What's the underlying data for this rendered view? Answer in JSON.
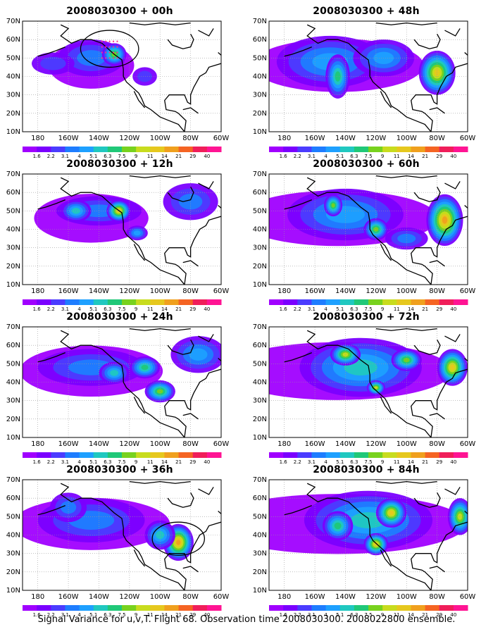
{
  "colors": {
    "background": "#ffffff",
    "coast": "#000000",
    "grid": "#9a9a9a",
    "highlight_circle": "#000000",
    "dots": "#ff2d8a"
  },
  "colorbar": {
    "labels": [
      "1.6",
      "2.2",
      "3.1",
      "4",
      "5.1",
      "6.3",
      "7.5",
      "9",
      "11",
      "14",
      "21",
      "29",
      "40"
    ],
    "colors": [
      "#a000ff",
      "#7a00ff",
      "#4b3cff",
      "#1e7dff",
      "#1ea0ff",
      "#20c8c0",
      "#20c878",
      "#78d21e",
      "#c8dc1e",
      "#e6c81e",
      "#f0a01e",
      "#f56423",
      "#f01e5a",
      "#ff1493"
    ]
  },
  "axes": {
    "lon_ticks": [
      "180",
      "160W",
      "140W",
      "120W",
      "100W",
      "80W",
      "60W"
    ],
    "lat_ticks": [
      "10N",
      "20N",
      "30N",
      "40N",
      "50N",
      "60N",
      "70N"
    ],
    "lon_range": [
      -190,
      -60
    ],
    "lat_range": [
      10,
      70
    ]
  },
  "panels": [
    {
      "id": "p00",
      "title": "2008030300 + 00h",
      "level": 0.6,
      "circle": {
        "lon": -133,
        "lat": 55,
        "r": 10
      },
      "dots": true,
      "blobs": [
        {
          "lon": -145,
          "lat": 50,
          "sx": 22,
          "sy": 10,
          "lv": 3
        },
        {
          "lon": -130,
          "lat": 52,
          "sx": 8,
          "sy": 6,
          "lv": 7
        },
        {
          "lon": -170,
          "lat": 47,
          "sx": 14,
          "sy": 6,
          "lv": 2
        },
        {
          "lon": -110,
          "lat": 40,
          "sx": 8,
          "sy": 5,
          "lv": 2
        }
      ]
    },
    {
      "id": "p48",
      "title": "2008030300 + 48h",
      "level": 1.2,
      "blobs": [
        {
          "lon": -150,
          "lat": 48,
          "sx": 35,
          "sy": 14,
          "lv": 4
        },
        {
          "lon": -80,
          "lat": 42,
          "sx": 12,
          "sy": 12,
          "lv": 9
        },
        {
          "lon": -145,
          "lat": 40,
          "sx": 8,
          "sy": 12,
          "lv": 6
        },
        {
          "lon": -115,
          "lat": 50,
          "sx": 20,
          "sy": 10,
          "lv": 4
        }
      ]
    },
    {
      "id": "p12",
      "title": "2008030300 + 12h",
      "level": 0.8,
      "blobs": [
        {
          "lon": -140,
          "lat": 50,
          "sx": 28,
          "sy": 8,
          "lv": 3
        },
        {
          "lon": -127,
          "lat": 50,
          "sx": 8,
          "sy": 6,
          "lv": 9
        },
        {
          "lon": -155,
          "lat": 50,
          "sx": 10,
          "sy": 6,
          "lv": 5
        },
        {
          "lon": -80,
          "lat": 55,
          "sx": 18,
          "sy": 10,
          "lv": 3
        },
        {
          "lon": -115,
          "lat": 38,
          "sx": 7,
          "sy": 4,
          "lv": 4
        }
      ]
    },
    {
      "id": "p60",
      "title": "2008030300 + 60h",
      "level": 1.4,
      "blobs": [
        {
          "lon": -140,
          "lat": 48,
          "sx": 38,
          "sy": 14,
          "lv": 4
        },
        {
          "lon": -75,
          "lat": 45,
          "sx": 12,
          "sy": 14,
          "lv": 10
        },
        {
          "lon": -148,
          "lat": 53,
          "sx": 6,
          "sy": 6,
          "lv": 7
        },
        {
          "lon": -120,
          "lat": 40,
          "sx": 8,
          "sy": 6,
          "lv": 7
        },
        {
          "lon": -100,
          "lat": 35,
          "sx": 14,
          "sy": 6,
          "lv": 3
        }
      ]
    },
    {
      "id": "p24",
      "title": "2008030300 + 24h",
      "level": 1.0,
      "blobs": [
        {
          "lon": -145,
          "lat": 48,
          "sx": 35,
          "sy": 10,
          "lv": 3
        },
        {
          "lon": -110,
          "lat": 48,
          "sx": 10,
          "sy": 6,
          "lv": 6
        },
        {
          "lon": -100,
          "lat": 35,
          "sx": 10,
          "sy": 6,
          "lv": 7
        },
        {
          "lon": -130,
          "lat": 45,
          "sx": 10,
          "sy": 6,
          "lv": 5
        },
        {
          "lon": -75,
          "lat": 55,
          "sx": 18,
          "sy": 10,
          "lv": 4
        }
      ]
    },
    {
      "id": "p72",
      "title": "2008030300 + 72h",
      "level": 1.6,
      "blobs": [
        {
          "lon": -130,
          "lat": 48,
          "sx": 40,
          "sy": 16,
          "lv": 5
        },
        {
          "lon": -70,
          "lat": 48,
          "sx": 10,
          "sy": 10,
          "lv": 9
        },
        {
          "lon": -140,
          "lat": 55,
          "sx": 10,
          "sy": 6,
          "lv": 8
        },
        {
          "lon": -120,
          "lat": 37,
          "sx": 6,
          "sy": 4,
          "lv": 8
        },
        {
          "lon": -100,
          "lat": 52,
          "sx": 10,
          "sy": 6,
          "lv": 7
        }
      ]
    },
    {
      "id": "p36",
      "title": "2008030300 + 36h",
      "level": 1.1,
      "circle": {
        "lon": -88,
        "lat": 38,
        "r": 9
      },
      "blobs": [
        {
          "lon": -145,
          "lat": 48,
          "sx": 35,
          "sy": 12,
          "lv": 3
        },
        {
          "lon": -88,
          "lat": 36,
          "sx": 10,
          "sy": 10,
          "lv": 10
        },
        {
          "lon": -100,
          "lat": 40,
          "sx": 10,
          "sy": 8,
          "lv": 5
        },
        {
          "lon": -160,
          "lat": 55,
          "sx": 12,
          "sy": 8,
          "lv": 3
        }
      ]
    },
    {
      "id": "p84",
      "title": "2008030300 + 84h",
      "level": 1.8,
      "blobs": [
        {
          "lon": -125,
          "lat": 48,
          "sx": 42,
          "sy": 16,
          "lv": 5
        },
        {
          "lon": -110,
          "lat": 52,
          "sx": 10,
          "sy": 8,
          "lv": 9
        },
        {
          "lon": -120,
          "lat": 35,
          "sx": 8,
          "sy": 6,
          "lv": 9
        },
        {
          "lon": -65,
          "lat": 50,
          "sx": 8,
          "sy": 10,
          "lv": 8
        },
        {
          "lon": -145,
          "lat": 45,
          "sx": 10,
          "sy": 8,
          "lv": 6
        }
      ]
    }
  ],
  "caption": "Signal Variance for u,v,T. Flight 68. Observation time 2008030300. 2008022800 ensemble."
}
